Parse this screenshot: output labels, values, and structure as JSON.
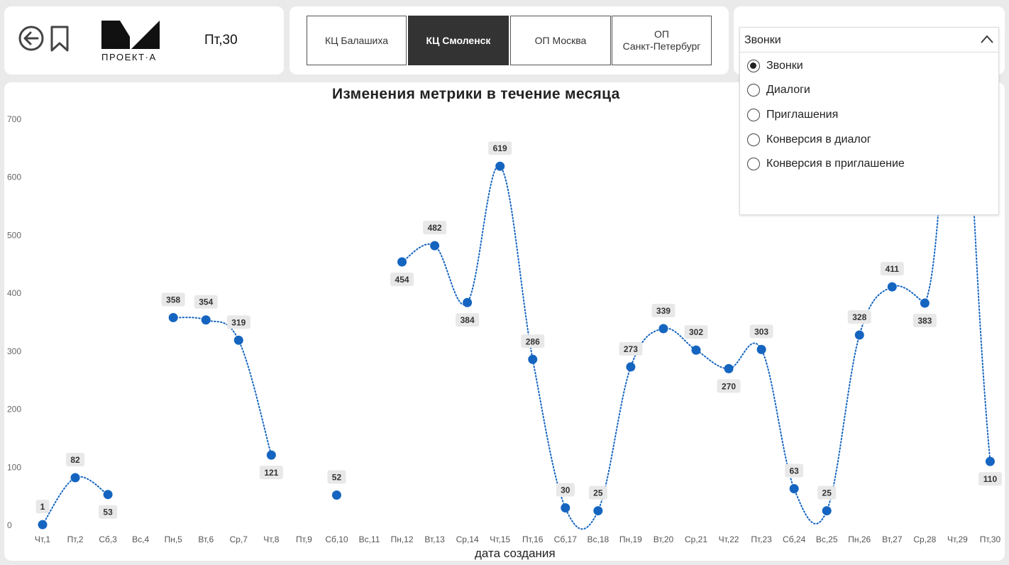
{
  "header": {
    "back_icon": "back-arrow-icon",
    "bookmark_icon": "bookmark-icon",
    "logo_text": "ПРОЕКТ·А",
    "date": "Пт,30"
  },
  "tabs": [
    {
      "label": "КЦ Балашиха",
      "active": false
    },
    {
      "label": "КЦ Смоленск",
      "active": true
    },
    {
      "label": "ОП Москва",
      "active": false
    },
    {
      "label": "ОП\nСанкт-Петербург",
      "active": false
    }
  ],
  "metric_dropdown": {
    "selected": "Звонки",
    "options": [
      {
        "label": "Звонки",
        "checked": true
      },
      {
        "label": "Диалоги",
        "checked": false
      },
      {
        "label": "Приглашения",
        "checked": false
      },
      {
        "label": "Конверсия в диалог",
        "checked": false
      },
      {
        "label": "Конверсия в приглашение",
        "checked": false
      }
    ]
  },
  "chart_data": {
    "type": "line",
    "title": "Изменения метрики в течение месяца",
    "xlabel": "дата создания",
    "ylabel": "",
    "ylim": [
      0,
      700
    ],
    "yticks": [
      0,
      100,
      200,
      300,
      400,
      500,
      600,
      700
    ],
    "line_style": "dotted",
    "color": "#1565c0",
    "grid": false,
    "categories": [
      "Чт,1",
      "Пт,2",
      "Сб,3",
      "Вс,4",
      "Пн,5",
      "Вт,6",
      "Ср,7",
      "Чт,8",
      "Пт,9",
      "Сб,10",
      "Вс,11",
      "Пн,12",
      "Вт,13",
      "Ср,14",
      "Чт,15",
      "Пт,16",
      "Сб,17",
      "Вс,18",
      "Пн,19",
      "Вт,20",
      "Ср,21",
      "Чт,22",
      "Пт,23",
      "Сб,24",
      "Вс,25",
      "Пн,26",
      "Вт,27",
      "Ср,28",
      "Чт,29",
      "Пт,30"
    ],
    "values": [
      1,
      82,
      53,
      null,
      358,
      354,
      319,
      121,
      null,
      52,
      null,
      454,
      482,
      384,
      619,
      286,
      30,
      25,
      273,
      339,
      302,
      270,
      303,
      63,
      25,
      328,
      411,
      383,
      null,
      110
    ],
    "hidden_peak_before_last": true
  }
}
